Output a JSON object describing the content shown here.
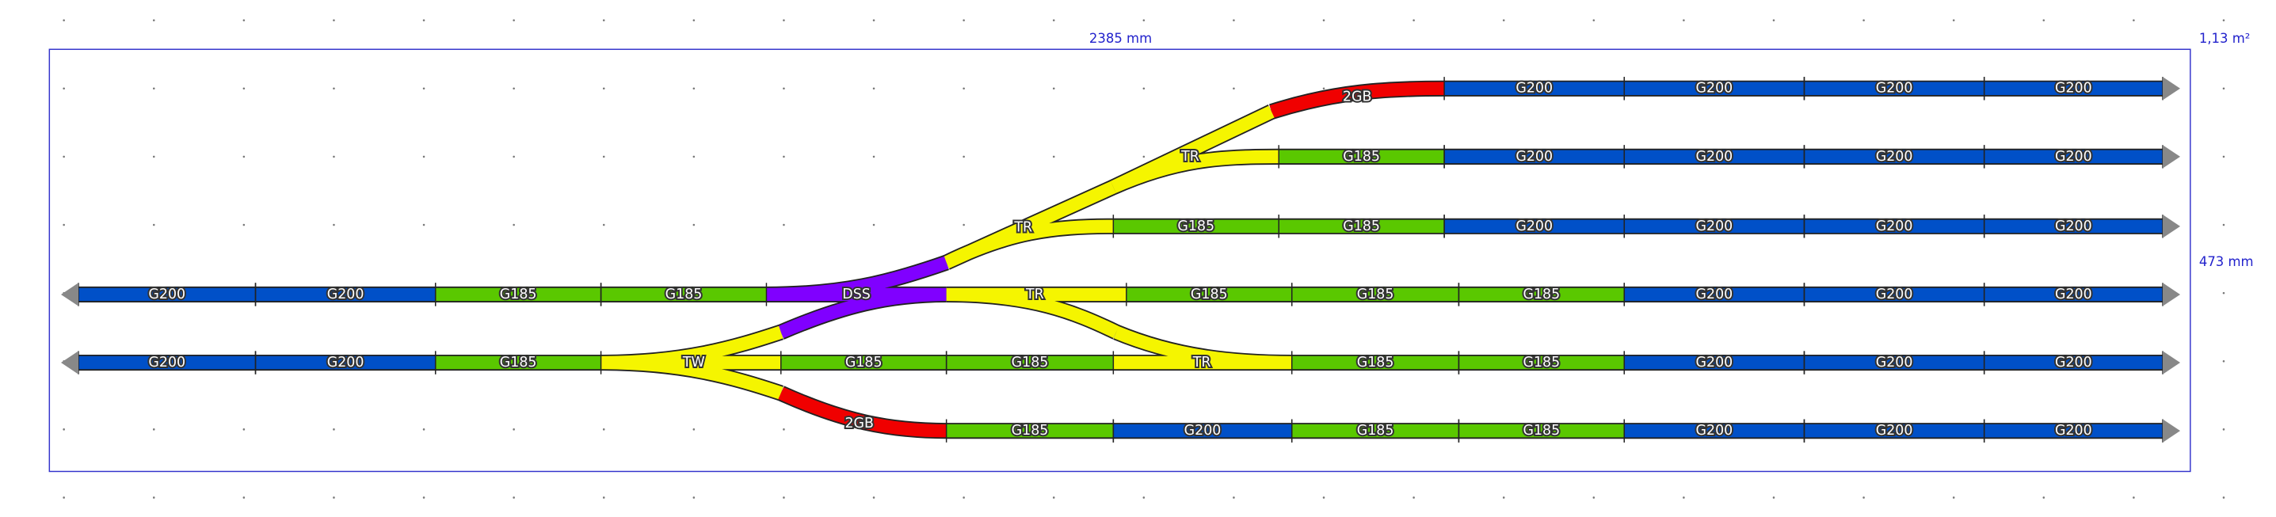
{
  "header": {
    "length": "2385 mm",
    "area": "1,13 m²",
    "height": "473 mm"
  },
  "rows": [
    {
      "segments": [
        {
          "label": "2GB",
          "color": "#f00000"
        },
        {
          "label": "G200",
          "color": "#0050c8"
        },
        {
          "label": "G200",
          "color": "#0050c8"
        },
        {
          "label": "G200",
          "color": "#0050c8"
        },
        {
          "label": "G200",
          "color": "#0050c8"
        }
      ]
    },
    {
      "segments": [
        {
          "label": "TR",
          "color": "#f5f500"
        },
        {
          "label": "G185",
          "color": "#5ac800"
        },
        {
          "label": "G200",
          "color": "#0050c8"
        },
        {
          "label": "G200",
          "color": "#0050c8"
        },
        {
          "label": "G200",
          "color": "#0050c8"
        },
        {
          "label": "G200",
          "color": "#0050c8"
        }
      ]
    },
    {
      "segments": [
        {
          "label": "TR",
          "color": "#f5f500"
        },
        {
          "label": "G185",
          "color": "#5ac800"
        },
        {
          "label": "G185",
          "color": "#5ac800"
        },
        {
          "label": "G200",
          "color": "#0050c8"
        },
        {
          "label": "G200",
          "color": "#0050c8"
        },
        {
          "label": "G200",
          "color": "#0050c8"
        },
        {
          "label": "G200",
          "color": "#0050c8"
        }
      ]
    },
    {
      "segments": [
        {
          "label": "G200",
          "color": "#0050c8"
        },
        {
          "label": "G200",
          "color": "#0050c8"
        },
        {
          "label": "G185",
          "color": "#5ac800"
        },
        {
          "label": "G185",
          "color": "#5ac800"
        },
        {
          "label": "DSS",
          "color": "#8000ff"
        },
        {
          "label": "TR",
          "color": "#f5f500"
        },
        {
          "label": "G185",
          "color": "#5ac800"
        },
        {
          "label": "G185",
          "color": "#5ac800"
        },
        {
          "label": "G185",
          "color": "#5ac800"
        },
        {
          "label": "G200",
          "color": "#0050c8"
        },
        {
          "label": "G200",
          "color": "#0050c8"
        },
        {
          "label": "G200",
          "color": "#0050c8"
        }
      ]
    },
    {
      "segments": [
        {
          "label": "G200",
          "color": "#0050c8"
        },
        {
          "label": "G200",
          "color": "#0050c8"
        },
        {
          "label": "G185",
          "color": "#5ac800"
        },
        {
          "label": "TW",
          "color": "#f5f500"
        },
        {
          "label": "G185",
          "color": "#5ac800"
        },
        {
          "label": "G185",
          "color": "#5ac800"
        },
        {
          "label": "TR",
          "color": "#f5f500"
        },
        {
          "label": "G185",
          "color": "#5ac800"
        },
        {
          "label": "G185",
          "color": "#5ac800"
        },
        {
          "label": "G200",
          "color": "#0050c8"
        },
        {
          "label": "G200",
          "color": "#0050c8"
        },
        {
          "label": "G200",
          "color": "#0050c8"
        }
      ]
    },
    {
      "segments": [
        {
          "label": "2GB",
          "color": "#f00000"
        },
        {
          "label": "G185",
          "color": "#5ac800"
        },
        {
          "label": "G200",
          "color": "#0050c8"
        },
        {
          "label": "G185",
          "color": "#5ac800"
        },
        {
          "label": "G185",
          "color": "#5ac800"
        },
        {
          "label": "G200",
          "color": "#0050c8"
        },
        {
          "label": "G200",
          "color": "#0050c8"
        },
        {
          "label": "G200",
          "color": "#0050c8"
        }
      ]
    }
  ]
}
